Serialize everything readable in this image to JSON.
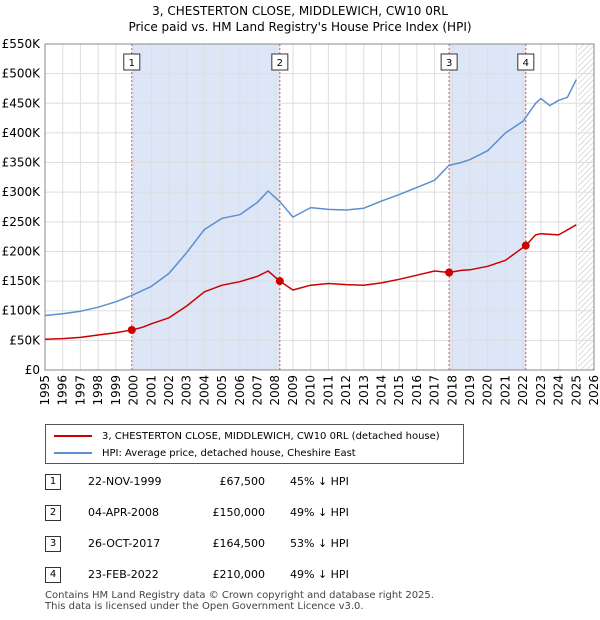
{
  "title": {
    "line1": "3, CHESTERTON CLOSE, MIDDLEWICH, CW10 0RL",
    "line2": "Price paid vs. HM Land Registry's House Price Index (HPI)"
  },
  "legend": {
    "property_label": "3, CHESTERTON CLOSE, MIDDLEWICH, CW10 0RL (detached house)",
    "hpi_label": "HPI: Average price, detached house, Cheshire East"
  },
  "sales": [
    {
      "num": "1",
      "date": "22-NOV-1999",
      "price": "£67,500",
      "hpi": "45% ↓ HPI"
    },
    {
      "num": "2",
      "date": "04-APR-2008",
      "price": "£150,000",
      "hpi": "49% ↓ HPI"
    },
    {
      "num": "3",
      "date": "26-OCT-2017",
      "price": "£164,500",
      "hpi": "53% ↓ HPI"
    },
    {
      "num": "4",
      "date": "23-FEB-2022",
      "price": "£210,000",
      "hpi": "49% ↓ HPI"
    }
  ],
  "footer": {
    "line1": "Contains HM Land Registry data © Crown copyright and database right 2025.",
    "line2": "This data is licensed under the Open Government Licence v3.0."
  },
  "colors": {
    "property": "#cc0000",
    "hpi": "#5b8fd1",
    "shade": "#dde6f6",
    "grid": "#dddddd",
    "vline": "#e05050"
  },
  "chart_data": {
    "type": "line",
    "title": "Price paid vs. HM Land Registry's House Price Index (HPI)",
    "xlim": [
      1995,
      2026
    ],
    "ylim": [
      0,
      550000
    ],
    "y_ticks": [
      0,
      50000,
      100000,
      150000,
      200000,
      250000,
      300000,
      350000,
      400000,
      450000,
      500000,
      550000
    ],
    "y_tick_labels": [
      "£0",
      "£50K",
      "£100K",
      "£150K",
      "£200K",
      "£250K",
      "£300K",
      "£350K",
      "£400K",
      "£450K",
      "£500K",
      "£550K"
    ],
    "x_ticks": [
      1995,
      1996,
      1997,
      1998,
      1999,
      2000,
      2001,
      2002,
      2003,
      2004,
      2005,
      2006,
      2007,
      2008,
      2009,
      2010,
      2011,
      2012,
      2013,
      2014,
      2015,
      2016,
      2017,
      2018,
      2019,
      2020,
      2021,
      2022,
      2023,
      2024,
      2025,
      2026
    ],
    "x_tick_labels": [
      "1995",
      "1996",
      "1997",
      "1998",
      "1999",
      "2000",
      "2001",
      "2002",
      "2003",
      "2004",
      "2005",
      "2006",
      "2007",
      "2008",
      "2009",
      "2010",
      "2011",
      "2012",
      "2013",
      "2014",
      "2015",
      "2016",
      "2017",
      "2018",
      "2019",
      "2020",
      "2021",
      "2022",
      "2023",
      "2024",
      "2025",
      "2026"
    ],
    "shaded_ranges": [
      [
        1999.9,
        2008.26
      ],
      [
        2017.82,
        2022.15
      ]
    ],
    "future_hatch_from": 2025.1,
    "sale_markers": [
      {
        "label": "1",
        "x": 1999.9,
        "y": 67500
      },
      {
        "label": "2",
        "x": 2008.26,
        "y": 150000
      },
      {
        "label": "3",
        "x": 2017.82,
        "y": 164500
      },
      {
        "label": "4",
        "x": 2022.15,
        "y": 210000
      }
    ],
    "series": [
      {
        "name": "3, CHESTERTON CLOSE, MIDDLEWICH, CW10 0RL (detached house)",
        "x": [
          1995.0,
          1996.0,
          1997.0,
          1998.0,
          1999.0,
          1999.9,
          2000.5,
          2001.0,
          2002.0,
          2003.0,
          2004.0,
          2005.0,
          2006.0,
          2007.0,
          2007.6,
          2008.26,
          2009.0,
          2010.0,
          2011.0,
          2012.0,
          2013.0,
          2014.0,
          2015.0,
          2016.0,
          2017.0,
          2017.82,
          2018.5,
          2019.0,
          2020.0,
          2021.0,
          2022.15,
          2022.7,
          2023.0,
          2024.0,
          2025.0
        ],
        "values": [
          52000,
          53000,
          55000,
          59000,
          63000,
          67500,
          72000,
          78000,
          88000,
          108000,
          132000,
          143000,
          149000,
          158000,
          167000,
          150000,
          135000,
          143000,
          146000,
          144000,
          143000,
          147000,
          153000,
          160000,
          167000,
          164500,
          168000,
          169000,
          175000,
          185000,
          210000,
          228000,
          230000,
          228000,
          245000
        ]
      },
      {
        "name": "HPI: Average price, detached house, Cheshire East",
        "x": [
          1995.0,
          1996.0,
          1997.0,
          1998.0,
          1999.0,
          2000.0,
          2001.0,
          2002.0,
          2003.0,
          2004.0,
          2005.0,
          2006.0,
          2007.0,
          2007.6,
          2008.3,
          2009.0,
          2010.0,
          2011.0,
          2012.0,
          2013.0,
          2014.0,
          2015.0,
          2016.0,
          2017.0,
          2017.8,
          2018.5,
          2019.0,
          2020.0,
          2021.0,
          2022.0,
          2022.7,
          2023.0,
          2023.5,
          2024.0,
          2024.5,
          2025.0
        ],
        "values": [
          92000,
          95000,
          99000,
          106000,
          115000,
          127000,
          141000,
          163000,
          198000,
          237000,
          256000,
          262000,
          283000,
          302000,
          283000,
          258000,
          274000,
          271000,
          270000,
          273000,
          285000,
          296000,
          308000,
          320000,
          345000,
          350000,
          355000,
          370000,
          400000,
          420000,
          450000,
          458000,
          446000,
          455000,
          460000,
          490000
        ]
      }
    ]
  }
}
